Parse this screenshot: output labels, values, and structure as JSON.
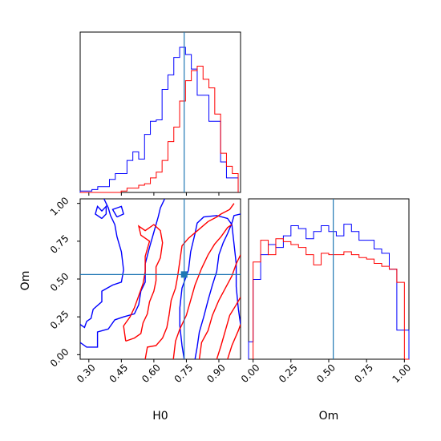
{
  "chart_data": [
    {
      "type": "histogram",
      "panel": "H0 marginal",
      "xlim": [
        0.26,
        1.0
      ],
      "truth": 0.74,
      "series": [
        {
          "color": "#0000ff",
          "bin_left_edges": [
            0.26,
            0.287,
            0.314,
            0.341,
            0.368,
            0.395,
            0.422,
            0.449,
            0.476,
            0.503,
            0.53,
            0.557,
            0.584,
            0.611,
            0.638,
            0.665,
            0.692,
            0.719,
            0.746,
            0.773,
            0.8,
            0.827,
            0.854,
            0.881,
            0.908,
            0.935,
            0.962
          ],
          "heights": [
            0.01,
            0.01,
            0.02,
            0.04,
            0.04,
            0.09,
            0.13,
            0.13,
            0.22,
            0.28,
            0.23,
            0.4,
            0.49,
            0.5,
            0.71,
            0.81,
            0.93,
            1.0,
            0.95,
            0.85,
            0.67,
            0.67,
            0.49,
            0.49,
            0.21,
            0.1,
            0.1
          ]
        },
        {
          "color": "#ff0000",
          "bin_left_edges": [
            0.26,
            0.287,
            0.314,
            0.341,
            0.368,
            0.395,
            0.422,
            0.449,
            0.476,
            0.503,
            0.53,
            0.557,
            0.584,
            0.611,
            0.638,
            0.665,
            0.692,
            0.719,
            0.746,
            0.773,
            0.8,
            0.827,
            0.854,
            0.881,
            0.908,
            0.935,
            0.962
          ],
          "heights": [
            0,
            0,
            0,
            0,
            0,
            0,
            0,
            0.01,
            0.03,
            0.03,
            0.05,
            0.06,
            0.1,
            0.14,
            0.22,
            0.35,
            0.45,
            0.63,
            0.77,
            0.84,
            0.87,
            0.78,
            0.72,
            0.54,
            0.27,
            0.18,
            0.13
          ]
        }
      ]
    },
    {
      "type": "contour",
      "panel": "Om vs H0",
      "xlabel": "H0",
      "ylabel": "Om",
      "xlim": [
        0.26,
        1.0
      ],
      "ylim": [
        -0.03,
        1.03
      ],
      "xticks": [
        "0.30",
        "0.45",
        "0.60",
        "0.75",
        "0.90"
      ],
      "yticks": [
        "0.00",
        "0.25",
        "0.50",
        "0.75",
        "1.00"
      ],
      "truth": [
        0.74,
        0.53
      ],
      "series": [
        {
          "color": "#0000ff",
          "paths": [
            [
              [
                0.26,
                0.2
              ],
              [
                0.28,
                0.18
              ],
              [
                0.29,
                0.22
              ],
              [
                0.31,
                0.24
              ],
              [
                0.32,
                0.3
              ],
              [
                0.36,
                0.35
              ],
              [
                0.36,
                0.42
              ],
              [
                0.41,
                0.46
              ],
              [
                0.45,
                0.48
              ],
              [
                0.46,
                0.56
              ],
              [
                0.45,
                0.68
              ],
              [
                0.43,
                0.78
              ],
              [
                0.42,
                0.86
              ],
              [
                0.4,
                0.92
              ],
              [
                0.39,
                0.97
              ],
              [
                0.37,
                1.03
              ]
            ],
            [
              [
                0.26,
                0.08
              ],
              [
                0.29,
                0.05
              ],
              [
                0.34,
                0.05
              ],
              [
                0.34,
                0.15
              ],
              [
                0.39,
                0.17
              ],
              [
                0.42,
                0.23
              ],
              [
                0.46,
                0.25
              ],
              [
                0.51,
                0.27
              ],
              [
                0.53,
                0.33
              ],
              [
                0.54,
                0.42
              ],
              [
                0.56,
                0.48
              ],
              [
                0.56,
                0.6
              ],
              [
                0.58,
                0.71
              ],
              [
                0.6,
                0.81
              ],
              [
                0.62,
                0.91
              ],
              [
                0.63,
                0.97
              ],
              [
                0.65,
                1.03
              ]
            ],
            [
              [
                0.74,
                -0.03
              ],
              [
                0.73,
                0.06
              ],
              [
                0.72,
                0.19
              ],
              [
                0.72,
                0.31
              ],
              [
                0.73,
                0.44
              ],
              [
                0.76,
                0.56
              ],
              [
                0.77,
                0.68
              ],
              [
                0.79,
                0.8
              ],
              [
                0.8,
                0.87
              ],
              [
                0.83,
                0.91
              ],
              [
                0.89,
                0.92
              ],
              [
                0.94,
                0.9
              ],
              [
                0.96,
                0.86
              ],
              [
                0.97,
                0.73
              ],
              [
                0.98,
                0.6
              ],
              [
                0.98,
                0.45
              ],
              [
                0.99,
                0.3
              ],
              [
                1.0,
                0.2
              ]
            ],
            [
              [
                0.79,
                -0.03
              ],
              [
                0.8,
                0.05
              ],
              [
                0.81,
                0.15
              ],
              [
                0.83,
                0.25
              ],
              [
                0.85,
                0.36
              ],
              [
                0.87,
                0.46
              ],
              [
                0.89,
                0.55
              ],
              [
                0.9,
                0.66
              ],
              [
                0.92,
                0.74
              ],
              [
                0.94,
                0.8
              ],
              [
                0.96,
                0.87
              ],
              [
                0.97,
                0.92
              ],
              [
                1.0,
                0.93
              ]
            ],
            [
              [
                0.36,
                0.9
              ],
              [
                0.38,
                0.93
              ],
              [
                0.38,
                0.98
              ],
              [
                0.36,
                0.95
              ],
              [
                0.34,
                0.98
              ],
              [
                0.33,
                0.93
              ],
              [
                0.36,
                0.9
              ]
            ],
            [
              [
                0.43,
                0.91
              ],
              [
                0.46,
                0.93
              ],
              [
                0.45,
                0.98
              ],
              [
                0.41,
                0.96
              ],
              [
                0.43,
                0.91
              ]
            ]
          ]
        },
        {
          "color": "#ff0000",
          "paths": [
            [
              [
                0.47,
                0.09
              ],
              [
                0.51,
                0.11
              ],
              [
                0.54,
                0.14
              ],
              [
                0.55,
                0.21
              ],
              [
                0.57,
                0.27
              ],
              [
                0.58,
                0.35
              ],
              [
                0.6,
                0.42
              ],
              [
                0.61,
                0.49
              ],
              [
                0.61,
                0.58
              ],
              [
                0.63,
                0.64
              ],
              [
                0.64,
                0.74
              ],
              [
                0.63,
                0.82
              ],
              [
                0.6,
                0.86
              ],
              [
                0.56,
                0.82
              ],
              [
                0.53,
                0.85
              ],
              [
                0.54,
                0.79
              ],
              [
                0.58,
                0.75
              ],
              [
                0.56,
                0.65
              ],
              [
                0.56,
                0.55
              ],
              [
                0.55,
                0.47
              ],
              [
                0.53,
                0.39
              ],
              [
                0.51,
                0.31
              ],
              [
                0.49,
                0.25
              ],
              [
                0.46,
                0.19
              ],
              [
                0.47,
                0.09
              ]
            ],
            [
              [
                0.56,
                -0.03
              ],
              [
                0.57,
                0.05
              ],
              [
                0.61,
                0.06
              ],
              [
                0.64,
                0.11
              ],
              [
                0.66,
                0.18
              ],
              [
                0.67,
                0.26
              ],
              [
                0.68,
                0.36
              ],
              [
                0.7,
                0.44
              ],
              [
                0.71,
                0.52
              ],
              [
                0.72,
                0.62
              ],
              [
                0.73,
                0.72
              ],
              [
                0.76,
                0.77
              ],
              [
                0.81,
                0.83
              ],
              [
                0.85,
                0.88
              ],
              [
                0.89,
                0.91
              ],
              [
                0.91,
                0.93
              ],
              [
                0.95,
                0.96
              ],
              [
                0.97,
                1.0
              ]
            ],
            [
              [
                0.69,
                -0.03
              ],
              [
                0.7,
                0.09
              ],
              [
                0.72,
                0.17
              ],
              [
                0.75,
                0.26
              ],
              [
                0.77,
                0.36
              ],
              [
                0.79,
                0.46
              ],
              [
                0.82,
                0.57
              ],
              [
                0.85,
                0.66
              ],
              [
                0.88,
                0.73
              ],
              [
                0.91,
                0.78
              ],
              [
                0.94,
                0.84
              ],
              [
                0.96,
                0.86
              ]
            ],
            [
              [
                0.81,
                -0.03
              ],
              [
                0.82,
                0.08
              ],
              [
                0.85,
                0.16
              ],
              [
                0.87,
                0.26
              ],
              [
                0.9,
                0.36
              ],
              [
                0.93,
                0.44
              ],
              [
                0.96,
                0.52
              ],
              [
                0.98,
                0.6
              ],
              [
                1.0,
                0.66
              ]
            ],
            [
              [
                0.89,
                -0.03
              ],
              [
                0.91,
                0.06
              ],
              [
                0.93,
                0.16
              ],
              [
                0.95,
                0.26
              ],
              [
                0.98,
                0.33
              ],
              [
                1.0,
                0.38
              ]
            ],
            [
              [
                0.94,
                -0.03
              ],
              [
                0.96,
                0.06
              ],
              [
                0.99,
                0.16
              ],
              [
                1.0,
                0.2
              ]
            ]
          ]
        }
      ]
    },
    {
      "type": "histogram",
      "panel": "Om marginal",
      "xlabel": "Om",
      "xlim": [
        -0.03,
        1.03
      ],
      "xticks": [
        "0.00",
        "0.25",
        "0.50",
        "0.75",
        "1.00"
      ],
      "truth": 0.53,
      "series": [
        {
          "color": "#0000ff",
          "bin_left_edges": [
            -0.05,
            0.0,
            0.05,
            0.1,
            0.15,
            0.2,
            0.25,
            0.3,
            0.35,
            0.4,
            0.45,
            0.5,
            0.55,
            0.6,
            0.65,
            0.7,
            0.75,
            0.8,
            0.85,
            0.9,
            0.95,
            1.0
          ],
          "heights": [
            0.12,
            0.55,
            0.72,
            0.79,
            0.77,
            0.85,
            0.92,
            0.9,
            0.83,
            0.88,
            0.92,
            0.88,
            0.85,
            0.93,
            0.88,
            0.82,
            0.82,
            0.76,
            0.73,
            0.62,
            0.2,
            0.2
          ]
        },
        {
          "color": "#ff0000",
          "bin_left_edges": [
            0.0,
            0.05,
            0.1,
            0.15,
            0.2,
            0.25,
            0.3,
            0.35,
            0.4,
            0.45,
            0.5,
            0.55,
            0.6,
            0.65,
            0.7,
            0.75,
            0.8,
            0.85,
            0.9,
            0.95,
            1.0
          ],
          "heights": [
            0.67,
            0.82,
            0.72,
            0.83,
            0.81,
            0.79,
            0.77,
            0.72,
            0.65,
            0.73,
            0.72,
            0.72,
            0.74,
            0.72,
            0.7,
            0.69,
            0.66,
            0.64,
            0.62,
            0.53,
            0.0
          ]
        }
      ]
    }
  ]
}
